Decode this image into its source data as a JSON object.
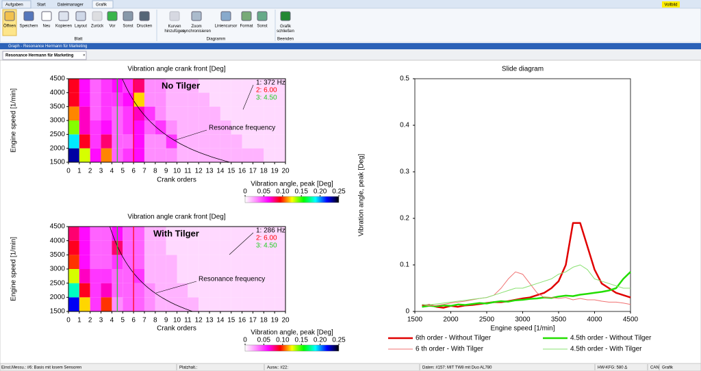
{
  "tabs": [
    "Aufgaben",
    "Start",
    "Dateimanager",
    "Grafik"
  ],
  "fullscreen": "Vollbild",
  "ribbon": {
    "groups": [
      {
        "label": "Blatt",
        "buttons": [
          "Öffnen",
          "Speichern",
          "Neu",
          "Kopieren",
          "Layout",
          "Zurück",
          "Vor",
          "Sonst",
          "Drucken"
        ]
      },
      {
        "label": "Diagramm",
        "buttons": [
          "Kurven hinzufügen",
          "Zoom synchronisieren",
          "Liniencursor",
          "Format",
          "Sonst"
        ]
      },
      {
        "label": "Beenden",
        "buttons": [
          "Grafik schließen"
        ]
      }
    ]
  },
  "window_title": "Graph - Resonance Hermann für Marketing",
  "document_tab": "Resonance Hermann für Marketing",
  "status_bar": [
    "Einst.Messu.: #6: Basis mit losem Sensoren",
    "Platzhalt.:",
    "Ausw.: #22:",
    "Daten: #157: MIT TW8 mit Duo AL780",
    "HW-KFG: 580 Δ",
    "CAN",
    "Grafik"
  ],
  "chart_data": [
    {
      "type": "heatmap",
      "title": "Vibration angle crank front [Deg]",
      "xlabel": "Crank orders",
      "ylabel": "Engine speed [1/min]",
      "annotation": "No Tilger",
      "xlim": [
        0,
        20
      ],
      "ylim": [
        1500,
        4500
      ],
      "xticks": [
        0,
        1,
        2,
        3,
        4,
        5,
        6,
        7,
        8,
        9,
        10,
        11,
        12,
        13,
        14,
        15,
        16,
        17,
        18,
        19,
        20
      ],
      "yticks": [
        1500,
        2000,
        2500,
        3000,
        3500,
        4000,
        4500
      ],
      "x_bins": [
        0,
        1,
        2,
        3,
        4,
        5,
        6,
        7,
        8,
        9,
        10,
        11,
        12,
        13,
        14,
        15,
        16,
        17,
        18,
        19,
        20
      ],
      "y_bins": [
        1500,
        2000,
        2500,
        3000,
        3500,
        4000,
        4500
      ],
      "z": [
        [
          0.23,
          0.13,
          0.06,
          0.11,
          0.04,
          0.05,
          0.06,
          0.03,
          0.03,
          0.03,
          0.02,
          0.02,
          0.02,
          0.02,
          0.02,
          0.02,
          0.02,
          0.02,
          0.01,
          0.01
        ],
        [
          0.19,
          0.09,
          0.05,
          0.08,
          0.04,
          0.04,
          0.06,
          0.03,
          0.03,
          0.05,
          0.02,
          0.02,
          0.02,
          0.02,
          0.02,
          0.02,
          0.01,
          0.01,
          0.01,
          0.01
        ],
        [
          0.14,
          0.07,
          0.05,
          0.06,
          0.04,
          0.05,
          0.06,
          0.04,
          0.05,
          0.03,
          0.02,
          0.02,
          0.02,
          0.02,
          0.02,
          0.01,
          0.01,
          0.01,
          0.01,
          0.01
        ],
        [
          0.11,
          0.07,
          0.04,
          0.05,
          0.04,
          0.05,
          0.07,
          0.05,
          0.03,
          0.02,
          0.02,
          0.02,
          0.02,
          0.02,
          0.01,
          0.01,
          0.01,
          0.01,
          0.01,
          0.01
        ],
        [
          0.09,
          0.06,
          0.04,
          0.05,
          0.05,
          0.06,
          0.12,
          0.03,
          0.03,
          0.02,
          0.02,
          0.02,
          0.02,
          0.01,
          0.01,
          0.01,
          0.01,
          0.01,
          0.01,
          0.01
        ],
        [
          0.09,
          0.06,
          0.04,
          0.05,
          0.06,
          0.05,
          0.08,
          0.03,
          0.03,
          0.02,
          0.02,
          0.02,
          0.01,
          0.01,
          0.01,
          0.01,
          0.01,
          0.01,
          0.01,
          0.01
        ]
      ],
      "cursors": [
        {
          "label": "1: 372 Hz",
          "value": 372,
          "color": "#000000"
        },
        {
          "label": "2: 6.00",
          "value": 6,
          "color": "#ff0000"
        },
        {
          "label": "3: 4.50",
          "value": 4.5,
          "color": "#22cc22"
        }
      ],
      "curve_label": "Resonance frequency",
      "colorbar": {
        "label": "Vibration angle, peak [Deg]",
        "lim": [
          0,
          0.25
        ],
        "ticks": [
          0,
          0.05,
          {
            "value": 0.1,
            "label": "0.10"
          },
          0.15,
          {
            "value": 0.2,
            "label": "0.20"
          },
          0.25
        ],
        "colormap": [
          "#ffffff",
          "#ff88ff",
          "#ff00ff",
          "#ff0000",
          "#ffff00",
          "#00ff00",
          "#00ffff",
          "#0000ff",
          "#000000"
        ]
      }
    },
    {
      "type": "heatmap",
      "title": "Vibration angle crank front [Deg]",
      "xlabel": "Crank orders",
      "ylabel": "Engine speed [1/min]",
      "annotation": "With Tilger",
      "xlim": [
        0,
        20
      ],
      "ylim": [
        1500,
        4500
      ],
      "xticks": [
        0,
        1,
        2,
        3,
        4,
        5,
        6,
        7,
        8,
        9,
        10,
        11,
        12,
        13,
        14,
        15,
        16,
        17,
        18,
        19,
        20
      ],
      "yticks": [
        1500,
        2000,
        2500,
        3000,
        3500,
        4000,
        4500
      ],
      "x_bins": [
        0,
        1,
        2,
        3,
        4,
        5,
        6,
        7,
        8,
        9,
        10,
        11,
        12,
        13,
        14,
        15,
        16,
        17,
        18,
        19,
        20
      ],
      "y_bins": [
        1500,
        2000,
        2500,
        3000,
        3500,
        4000,
        4500
      ],
      "z": [
        [
          0.22,
          0.12,
          0.05,
          0.1,
          0.03,
          0.04,
          0.04,
          0.03,
          0.02,
          0.02,
          0.02,
          0.02,
          0.01,
          0.01,
          0.01,
          0.01,
          0.01,
          0.01,
          0.01,
          0.01
        ],
        [
          0.18,
          0.09,
          0.05,
          0.07,
          0.04,
          0.04,
          0.04,
          0.03,
          0.02,
          0.02,
          0.02,
          0.01,
          0.01,
          0.01,
          0.01,
          0.01,
          0.01,
          0.01,
          0.01,
          0.01
        ],
        [
          0.13,
          0.07,
          0.05,
          0.05,
          0.04,
          0.04,
          0.05,
          0.02,
          0.02,
          0.02,
          0.01,
          0.01,
          0.01,
          0.01,
          0.01,
          0.01,
          0.01,
          0.01,
          0.01,
          0.01
        ],
        [
          0.1,
          0.06,
          0.04,
          0.04,
          0.05,
          0.04,
          0.04,
          0.02,
          0.02,
          0.02,
          0.01,
          0.01,
          0.01,
          0.01,
          0.01,
          0.01,
          0.01,
          0.01,
          0.01,
          0.01
        ],
        [
          0.09,
          0.06,
          0.04,
          0.04,
          0.08,
          0.04,
          0.04,
          0.02,
          0.02,
          0.01,
          0.01,
          0.01,
          0.01,
          0.01,
          0.01,
          0.01,
          0.01,
          0.01,
          0.01,
          0.01
        ],
        [
          0.08,
          0.06,
          0.04,
          0.04,
          0.06,
          0.04,
          0.04,
          0.02,
          0.02,
          0.01,
          0.01,
          0.01,
          0.01,
          0.01,
          0.01,
          0.01,
          0.01,
          0.01,
          0.01,
          0.01
        ]
      ],
      "cursors": [
        {
          "label": "1: 286 Hz",
          "value": 286,
          "color": "#000000"
        },
        {
          "label": "2: 6.00",
          "value": 6,
          "color": "#ff0000"
        },
        {
          "label": "3: 4.50",
          "value": 4.5,
          "color": "#22cc22"
        }
      ],
      "curve_label": "Resonance frequency",
      "colorbar": {
        "label": "Vibration angle, peak [Deg]",
        "lim": [
          0,
          0.25
        ],
        "ticks": [
          0,
          0.05,
          {
            "value": 0.1,
            "label": "0.10"
          },
          0.15,
          {
            "value": 0.2,
            "label": "0.20"
          },
          0.25
        ],
        "colormap": [
          "#ffffff",
          "#ff88ff",
          "#ff00ff",
          "#ff0000",
          "#ffff00",
          "#00ff00",
          "#00ffff",
          "#0000ff",
          "#000000"
        ]
      }
    },
    {
      "type": "line",
      "title": "Slide diagram",
      "xlabel": "Engine speed [1/min]",
      "ylabel": "Vibration angle, peak [Deg]",
      "xlim": [
        1500,
        4500
      ],
      "ylim": [
        0,
        0.5
      ],
      "xticks": [
        1500,
        2000,
        2500,
        3000,
        3500,
        4000,
        4500
      ],
      "yticks": [
        0,
        0.1,
        0.2,
        0.3,
        0.4,
        0.5
      ],
      "x": [
        1600,
        1700,
        1800,
        1900,
        2000,
        2100,
        2200,
        2300,
        2400,
        2500,
        2600,
        2700,
        2800,
        2900,
        3000,
        3100,
        3200,
        3300,
        3400,
        3500,
        3600,
        3700,
        3800,
        3900,
        4000,
        4100,
        4200,
        4300,
        4400,
        4500
      ],
      "series": [
        {
          "name": "6th order - Without Tilger",
          "color": "#e00000",
          "width": 2.5,
          "values": [
            0.012,
            0.014,
            0.01,
            0.008,
            0.012,
            0.01,
            0.013,
            0.014,
            0.016,
            0.018,
            0.02,
            0.02,
            0.022,
            0.025,
            0.028,
            0.03,
            0.035,
            0.04,
            0.05,
            0.065,
            0.1,
            0.19,
            0.19,
            0.14,
            0.09,
            0.06,
            0.05,
            0.04,
            0.035,
            0.03
          ]
        },
        {
          "name": "4.5th order - Without Tilger",
          "color": "#22dd00",
          "width": 2.5,
          "values": [
            0.01,
            0.012,
            0.011,
            0.013,
            0.012,
            0.015,
            0.014,
            0.016,
            0.018,
            0.017,
            0.02,
            0.022,
            0.021,
            0.024,
            0.025,
            0.027,
            0.028,
            0.03,
            0.029,
            0.032,
            0.034,
            0.033,
            0.036,
            0.038,
            0.04,
            0.042,
            0.045,
            0.05,
            0.07,
            0.085
          ]
        },
        {
          "name": "6 th order - With Tilger",
          "color": "#f07070",
          "width": 1,
          "values": [
            0.015,
            0.012,
            0.013,
            0.015,
            0.018,
            0.02,
            0.022,
            0.025,
            0.028,
            0.03,
            0.035,
            0.05,
            0.07,
            0.085,
            0.08,
            0.06,
            0.04,
            0.03,
            0.03,
            0.028,
            0.03,
            0.025,
            0.028,
            0.025,
            0.025,
            0.022,
            0.02,
            0.02,
            0.018,
            0.015
          ]
        },
        {
          "name": "4.5th order - With Tilger",
          "color": "#88e070",
          "width": 1,
          "values": [
            0.015,
            0.014,
            0.016,
            0.018,
            0.02,
            0.022,
            0.024,
            0.026,
            0.028,
            0.03,
            0.035,
            0.04,
            0.045,
            0.05,
            0.05,
            0.055,
            0.06,
            0.065,
            0.07,
            0.08,
            0.085,
            0.095,
            0.1,
            0.09,
            0.07,
            0.065,
            0.06,
            0.055,
            0.05,
            0.05
          ]
        }
      ]
    }
  ]
}
